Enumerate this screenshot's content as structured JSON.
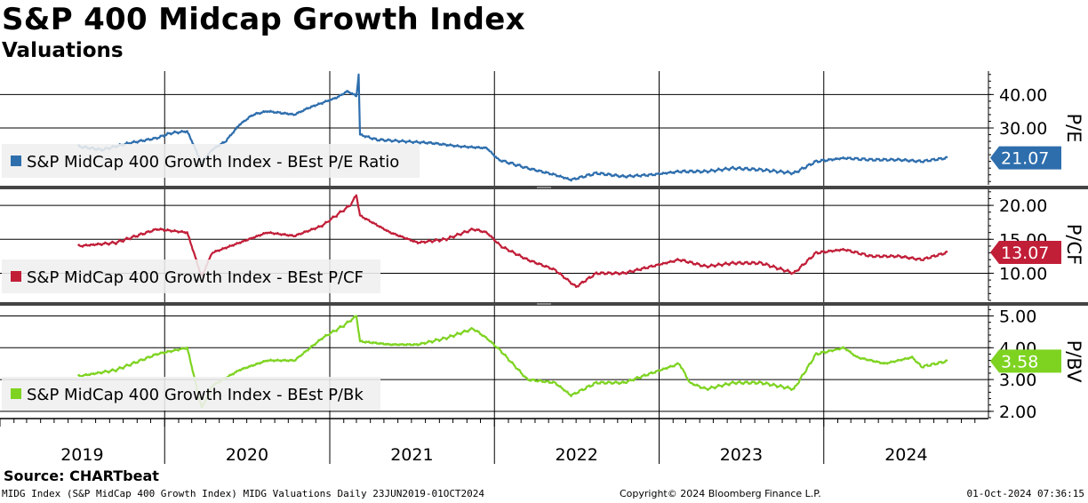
{
  "title": "S&P 400 Midcap Growth Index",
  "subtitle": "Valuations",
  "source": "Source: CHARTbeat",
  "footer": {
    "left": "MIDG Index (S&P MidCap 400 Growth Index) MIDG Valuations  Daily 23JUN2019-01OCT2024",
    "center": "Copyright© 2024 Bloomberg Finance L.P.",
    "right": "01-Oct-2024 07:36:15"
  },
  "chart_data": [
    {
      "type": "line",
      "axis_title": "P/E",
      "series": [
        {
          "name": "S&P MidCap 400 Growth Index - BEst P/E Ratio",
          "color": "#2e6ead",
          "last_value": "21.07",
          "points": [
            [
              "2019-06-23",
              24.5
            ],
            [
              "2019-08-15",
              23.5
            ],
            [
              "2019-10-15",
              25.5
            ],
            [
              "2019-12-15",
              27.0
            ],
            [
              "2020-01-15",
              28.5
            ],
            [
              "2020-02-20",
              29.0
            ],
            [
              "2020-03-05",
              25.0
            ],
            [
              "2020-03-23",
              19.5
            ],
            [
              "2020-04-15",
              23.5
            ],
            [
              "2020-05-15",
              26.0
            ],
            [
              "2020-06-15",
              31.0
            ],
            [
              "2020-07-15",
              34.0
            ],
            [
              "2020-08-15",
              35.0
            ],
            [
              "2020-09-15",
              34.5
            ],
            [
              "2020-10-15",
              34.0
            ],
            [
              "2020-11-15",
              36.0
            ],
            [
              "2020-12-15",
              37.5
            ],
            [
              "2021-01-15",
              39.0
            ],
            [
              "2021-02-10",
              41.0
            ],
            [
              "2021-03-01",
              39.5
            ],
            [
              "2021-03-06",
              46.0
            ],
            [
              "2021-03-09",
              28.0
            ],
            [
              "2021-04-15",
              26.5
            ],
            [
              "2021-06-15",
              26.0
            ],
            [
              "2021-08-15",
              25.5
            ],
            [
              "2021-10-15",
              24.5
            ],
            [
              "2021-12-15",
              24.0
            ],
            [
              "2022-01-10",
              20.5
            ],
            [
              "2022-03-15",
              18.0
            ],
            [
              "2022-05-15",
              16.0
            ],
            [
              "2022-06-20",
              14.5
            ],
            [
              "2022-08-15",
              16.5
            ],
            [
              "2022-10-15",
              15.5
            ],
            [
              "2022-12-15",
              16.0
            ],
            [
              "2023-02-15",
              17.0
            ],
            [
              "2023-04-15",
              17.0
            ],
            [
              "2023-06-15",
              18.0
            ],
            [
              "2023-08-15",
              17.5
            ],
            [
              "2023-10-27",
              16.5
            ],
            [
              "2023-12-15",
              20.0
            ],
            [
              "2024-02-15",
              21.0
            ],
            [
              "2024-04-15",
              20.5
            ],
            [
              "2024-06-15",
              20.5
            ],
            [
              "2024-08-05",
              20.0
            ],
            [
              "2024-10-01",
              21.07
            ]
          ]
        }
      ],
      "ticks": [
        30,
        40
      ],
      "tick_labels": [
        "30.00",
        "40.00"
      ],
      "ylim": [
        13,
        47
      ]
    },
    {
      "type": "line",
      "axis_title": "P/CF",
      "series": [
        {
          "name": "S&P MidCap 400 Growth Index - BEst P/CF",
          "color": "#c11e38",
          "last_value": "13.07",
          "points": [
            [
              "2019-06-23",
              14.0
            ],
            [
              "2019-09-15",
              14.5
            ],
            [
              "2019-12-15",
              16.5
            ],
            [
              "2020-02-20",
              16.0
            ],
            [
              "2020-03-23",
              9.5
            ],
            [
              "2020-04-15",
              13.0
            ],
            [
              "2020-06-15",
              14.5
            ],
            [
              "2020-08-15",
              16.0
            ],
            [
              "2020-10-15",
              15.5
            ],
            [
              "2020-12-15",
              17.0
            ],
            [
              "2021-02-15",
              20.0
            ],
            [
              "2021-03-01",
              21.5
            ],
            [
              "2021-03-09",
              18.5
            ],
            [
              "2021-05-15",
              16.0
            ],
            [
              "2021-07-15",
              14.5
            ],
            [
              "2021-09-15",
              15.0
            ],
            [
              "2021-11-15",
              16.5
            ],
            [
              "2021-12-15",
              16.0
            ],
            [
              "2022-01-15",
              14.0
            ],
            [
              "2022-03-15",
              12.0
            ],
            [
              "2022-05-15",
              10.5
            ],
            [
              "2022-07-01",
              8.0
            ],
            [
              "2022-08-15",
              10.0
            ],
            [
              "2022-10-15",
              10.0
            ],
            [
              "2022-12-15",
              11.0
            ],
            [
              "2023-02-15",
              12.0
            ],
            [
              "2023-04-15",
              11.0
            ],
            [
              "2023-06-15",
              11.5
            ],
            [
              "2023-08-15",
              11.5
            ],
            [
              "2023-10-27",
              10.0
            ],
            [
              "2023-12-15",
              13.0
            ],
            [
              "2024-02-15",
              13.5
            ],
            [
              "2024-04-15",
              12.5
            ],
            [
              "2024-06-15",
              12.5
            ],
            [
              "2024-08-05",
              12.0
            ],
            [
              "2024-10-01",
              13.07
            ]
          ]
        }
      ],
      "ticks": [
        10,
        15,
        20
      ],
      "tick_labels": [
        "10.00",
        "15.00",
        "20.00"
      ],
      "ylim": [
        6,
        22.5
      ]
    },
    {
      "type": "line",
      "axis_title": "P/BV",
      "series": [
        {
          "name": "S&P MidCap 400 Growth Index - BEst P/Bk",
          "color": "#7ed321",
          "last_value": "3.58",
          "points": [
            [
              "2019-06-23",
              3.1
            ],
            [
              "2019-09-15",
              3.3
            ],
            [
              "2019-12-15",
              3.8
            ],
            [
              "2020-02-20",
              4.0
            ],
            [
              "2020-03-23",
              2.1
            ],
            [
              "2020-04-15",
              2.8
            ],
            [
              "2020-06-15",
              3.3
            ],
            [
              "2020-08-15",
              3.6
            ],
            [
              "2020-10-15",
              3.6
            ],
            [
              "2020-12-15",
              4.3
            ],
            [
              "2021-02-01",
              4.7
            ],
            [
              "2021-03-01",
              5.0
            ],
            [
              "2021-03-09",
              4.2
            ],
            [
              "2021-05-15",
              4.1
            ],
            [
              "2021-07-15",
              4.1
            ],
            [
              "2021-09-15",
              4.3
            ],
            [
              "2021-11-15",
              4.6
            ],
            [
              "2021-12-15",
              4.3
            ],
            [
              "2022-01-15",
              3.9
            ],
            [
              "2022-03-15",
              3.0
            ],
            [
              "2022-05-15",
              2.9
            ],
            [
              "2022-06-20",
              2.5
            ],
            [
              "2022-08-15",
              2.9
            ],
            [
              "2022-10-15",
              2.9
            ],
            [
              "2022-12-15",
              3.2
            ],
            [
              "2023-02-15",
              3.5
            ],
            [
              "2023-03-10",
              2.9
            ],
            [
              "2023-04-15",
              2.7
            ],
            [
              "2023-06-15",
              2.9
            ],
            [
              "2023-08-15",
              2.9
            ],
            [
              "2023-10-27",
              2.7
            ],
            [
              "2023-12-15",
              3.8
            ],
            [
              "2024-02-15",
              4.0
            ],
            [
              "2024-03-15",
              3.7
            ],
            [
              "2024-05-15",
              3.5
            ],
            [
              "2024-07-15",
              3.7
            ],
            [
              "2024-08-05",
              3.4
            ],
            [
              "2024-10-01",
              3.58
            ]
          ]
        }
      ],
      "ticks": [
        2,
        3,
        4,
        5
      ],
      "tick_labels": [
        "2.00",
        "3.00",
        "4.00",
        "5.00"
      ],
      "ylim": [
        1.8,
        5.35
      ]
    }
  ],
  "x_axis": {
    "range": [
      "2019-01-01",
      "2024-12-31"
    ],
    "year_labels": [
      "2019",
      "2020",
      "2021",
      "2022",
      "2023",
      "2024"
    ]
  }
}
